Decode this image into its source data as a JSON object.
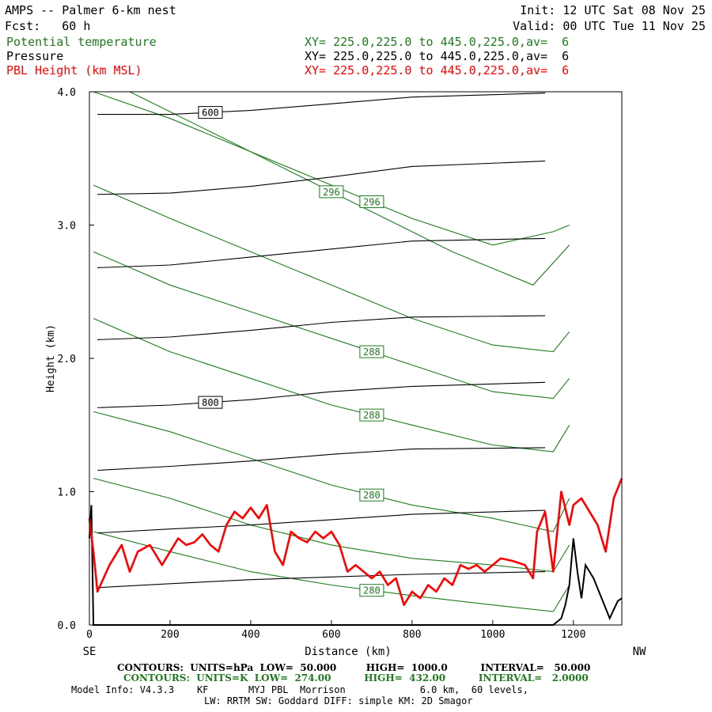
{
  "header": {
    "model_title": "AMPS -- Palmer 6-km nest",
    "init_label": "Init: 12 UTC Sat 08 Nov 25",
    "fcst_label": "Fcst:   60 h",
    "valid_label": "Valid: 00 UTC Tue 11 Nov 25"
  },
  "fields": [
    {
      "name": "Potential temperature",
      "xy": "XY= 225.0,225.0 to 445.0,225.0,av=  6",
      "color": "#1f7a1f"
    },
    {
      "name": "Pressure",
      "xy": "XY= 225.0,225.0 to 445.0,225.0,av=  6",
      "color": "#000000"
    },
    {
      "name": "PBL Height (km MSL)",
      "xy": "XY= 225.0,225.0 to 445.0,225.0,av=  6",
      "color": "#ff0000"
    }
  ],
  "chart_data": {
    "type": "line",
    "xlabel": "Distance (km)",
    "ylabel": "Height (km)",
    "xlim": [
      0,
      1320
    ],
    "ylim": [
      0,
      4.0
    ],
    "x_ticks": [
      "0",
      "200",
      "400",
      "600",
      "800",
      "1000",
      "1200"
    ],
    "y_ticks": [
      "0.0",
      "1.0",
      "2.0",
      "3.0",
      "4.0"
    ],
    "left_end": "SE",
    "right_end": "NW",
    "pressure_contours": [
      {
        "level": "600",
        "heights": [
          3.83,
          3.83,
          3.86,
          3.91,
          3.96,
          3.99
        ]
      },
      {
        "level": null,
        "heights": [
          3.23,
          3.24,
          3.29,
          3.36,
          3.44,
          3.48
        ]
      },
      {
        "level": null,
        "heights": [
          2.68,
          2.7,
          2.76,
          2.82,
          2.88,
          2.9
        ]
      },
      {
        "level": null,
        "heights": [
          2.14,
          2.16,
          2.21,
          2.27,
          2.31,
          2.32
        ]
      },
      {
        "level": "800",
        "heights": [
          1.63,
          1.65,
          1.69,
          1.75,
          1.79,
          1.82
        ]
      },
      {
        "level": null,
        "heights": [
          1.16,
          1.19,
          1.23,
          1.28,
          1.32,
          1.33
        ]
      },
      {
        "level": null,
        "heights": [
          0.69,
          0.72,
          0.75,
          0.79,
          0.83,
          0.86
        ]
      },
      {
        "level": null,
        "heights": [
          0.28,
          0.31,
          0.34,
          0.36,
          0.38,
          0.4
        ]
      }
    ],
    "pressure_x": [
      20,
      200,
      400,
      600,
      800,
      1130
    ],
    "theta_contours": [
      {
        "level": "296",
        "x": [
          10,
          200,
          400,
          600,
          800,
          1000,
          1150,
          1190
        ],
        "y": [
          4.0,
          3.8,
          3.55,
          3.3,
          3.05,
          2.85,
          2.95,
          3.0
        ]
      },
      {
        "level": "296",
        "x": [
          100,
          300,
          500,
          700,
          900,
          1100,
          1190
        ],
        "y": [
          4.0,
          3.7,
          3.4,
          3.1,
          2.8,
          2.55,
          2.85
        ]
      },
      {
        "level": null,
        "x": [
          10,
          200,
          400,
          600,
          800,
          1000,
          1150,
          1190
        ],
        "y": [
          3.3,
          3.05,
          2.8,
          2.55,
          2.3,
          2.1,
          2.05,
          2.2
        ]
      },
      {
        "level": "288",
        "x": [
          10,
          200,
          400,
          600,
          800,
          1000,
          1150,
          1190
        ],
        "y": [
          2.8,
          2.55,
          2.35,
          2.15,
          1.95,
          1.75,
          1.7,
          1.85
        ]
      },
      {
        "level": "288",
        "x": [
          10,
          200,
          400,
          600,
          800,
          1000,
          1150,
          1190
        ],
        "y": [
          2.3,
          2.05,
          1.85,
          1.65,
          1.5,
          1.35,
          1.3,
          1.5
        ]
      },
      {
        "level": "280",
        "x": [
          10,
          200,
          400,
          600,
          800,
          1000,
          1150,
          1190
        ],
        "y": [
          1.6,
          1.45,
          1.25,
          1.05,
          0.9,
          0.8,
          0.7,
          0.95
        ]
      },
      {
        "level": null,
        "x": [
          10,
          200,
          400,
          600,
          800,
          1000,
          1150,
          1190
        ],
        "y": [
          1.1,
          0.95,
          0.75,
          0.6,
          0.5,
          0.45,
          0.4,
          0.6
        ]
      },
      {
        "level": "280",
        "x": [
          10,
          200,
          400,
          600,
          800,
          1000,
          1150,
          1190
        ],
        "y": [
          0.7,
          0.55,
          0.4,
          0.3,
          0.22,
          0.15,
          0.1,
          0.3
        ]
      }
    ],
    "pbl_height": {
      "x": [
        0,
        10,
        20,
        50,
        80,
        100,
        120,
        150,
        180,
        200,
        220,
        240,
        260,
        280,
        300,
        320,
        340,
        360,
        380,
        400,
        420,
        440,
        460,
        480,
        500,
        520,
        540,
        560,
        580,
        600,
        620,
        640,
        660,
        680,
        700,
        720,
        740,
        760,
        780,
        800,
        820,
        840,
        860,
        880,
        900,
        920,
        940,
        960,
        980,
        1000,
        1020,
        1050,
        1080,
        1100,
        1110,
        1130,
        1150,
        1170,
        1190,
        1200,
        1220,
        1240,
        1260,
        1280,
        1300,
        1320
      ],
      "y": [
        0.8,
        0.55,
        0.25,
        0.45,
        0.6,
        0.4,
        0.55,
        0.6,
        0.45,
        0.55,
        0.65,
        0.6,
        0.62,
        0.68,
        0.6,
        0.55,
        0.75,
        0.85,
        0.8,
        0.88,
        0.8,
        0.9,
        0.55,
        0.45,
        0.7,
        0.65,
        0.62,
        0.7,
        0.65,
        0.7,
        0.6,
        0.4,
        0.45,
        0.4,
        0.35,
        0.4,
        0.3,
        0.35,
        0.15,
        0.25,
        0.2,
        0.3,
        0.25,
        0.35,
        0.3,
        0.45,
        0.42,
        0.45,
        0.4,
        0.45,
        0.5,
        0.48,
        0.45,
        0.35,
        0.7,
        0.85,
        0.4,
        1.0,
        0.75,
        0.9,
        0.95,
        0.85,
        0.75,
        0.55,
        0.95,
        1.1
      ]
    },
    "terrain": {
      "x": [
        0,
        5,
        10,
        30,
        1150,
        1170,
        1180,
        1190,
        1200,
        1210,
        1220,
        1230,
        1250,
        1270,
        1290,
        1310,
        1320
      ],
      "y": [
        0.65,
        0.9,
        0.0,
        0.0,
        0.0,
        0.05,
        0.15,
        0.3,
        0.65,
        0.4,
        0.2,
        0.45,
        0.35,
        0.2,
        0.05,
        0.18,
        0.2
      ]
    }
  },
  "footer": {
    "line1": "CONTOURS:  UNITS=hPa  LOW=  50.000         HIGH=  1000.0          INTERVAL=   50.000",
    "line2": "CONTOURS:  UNITS=K  LOW=  274.00          HIGH=  432.00          INTERVAL=   2.0000",
    "line3": "Model Info: V4.3.3    KF       MYJ PBL  Morrison             6.0 km,  60 levels,",
    "line4": "LW: RRTM SW: Goddard DIFF: simple KM: 2D Smagor"
  }
}
